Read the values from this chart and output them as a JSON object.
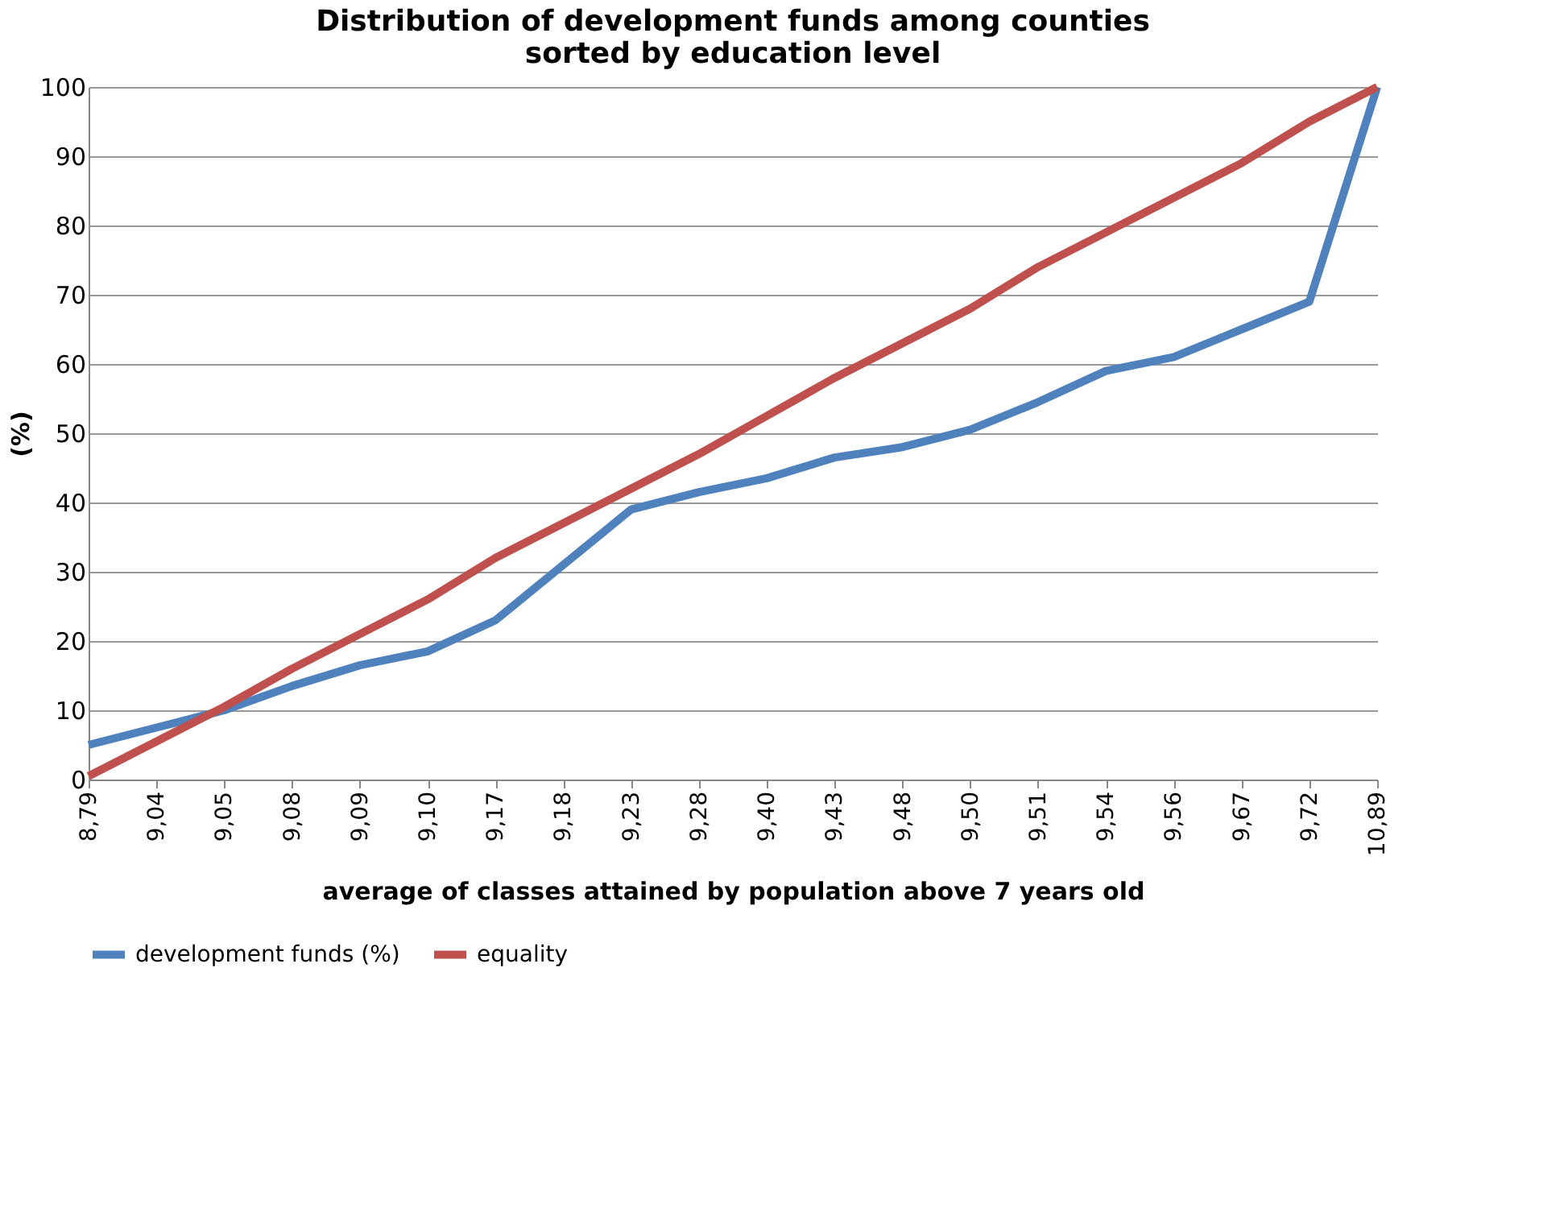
{
  "chart_data": {
    "type": "line",
    "title": [
      "Distribution  of development funds among counties",
      "sorted by education level"
    ],
    "xlabel": "average of classes attained by population above 7 years old",
    "ylabel": "(%)",
    "categories": [
      "8,79",
      "9,04",
      "9,05",
      "9,08",
      "9,09",
      "9,10",
      "9,17",
      "9,18",
      "9,23",
      "9,28",
      "9,40",
      "9,43",
      "9,48",
      "9,50",
      "9,51",
      "9,54",
      "9,56",
      "9,67",
      "9,72",
      "10,89"
    ],
    "series": [
      {
        "name": "development funds (%)",
        "color": "#4f81bd",
        "values": [
          5,
          7.5,
          10,
          13.5,
          16.5,
          18.5,
          23,
          31,
          39,
          41.5,
          43.5,
          46.5,
          48,
          50.5,
          54.5,
          59,
          61,
          65,
          69,
          100
        ]
      },
      {
        "name": "equality",
        "color": "#c0504d",
        "values": [
          0.5,
          5.5,
          10.5,
          16,
          21,
          26,
          32,
          37,
          42,
          47,
          52.5,
          58,
          63,
          68,
          74,
          79,
          84,
          89,
          95,
          100
        ]
      }
    ],
    "ylim": [
      0,
      100
    ],
    "yticks": [
      0,
      10,
      20,
      30,
      40,
      50,
      60,
      70,
      80,
      90,
      100
    ],
    "grid": "y",
    "legend": "bottom",
    "marker": "none",
    "line_style": "solid"
  }
}
